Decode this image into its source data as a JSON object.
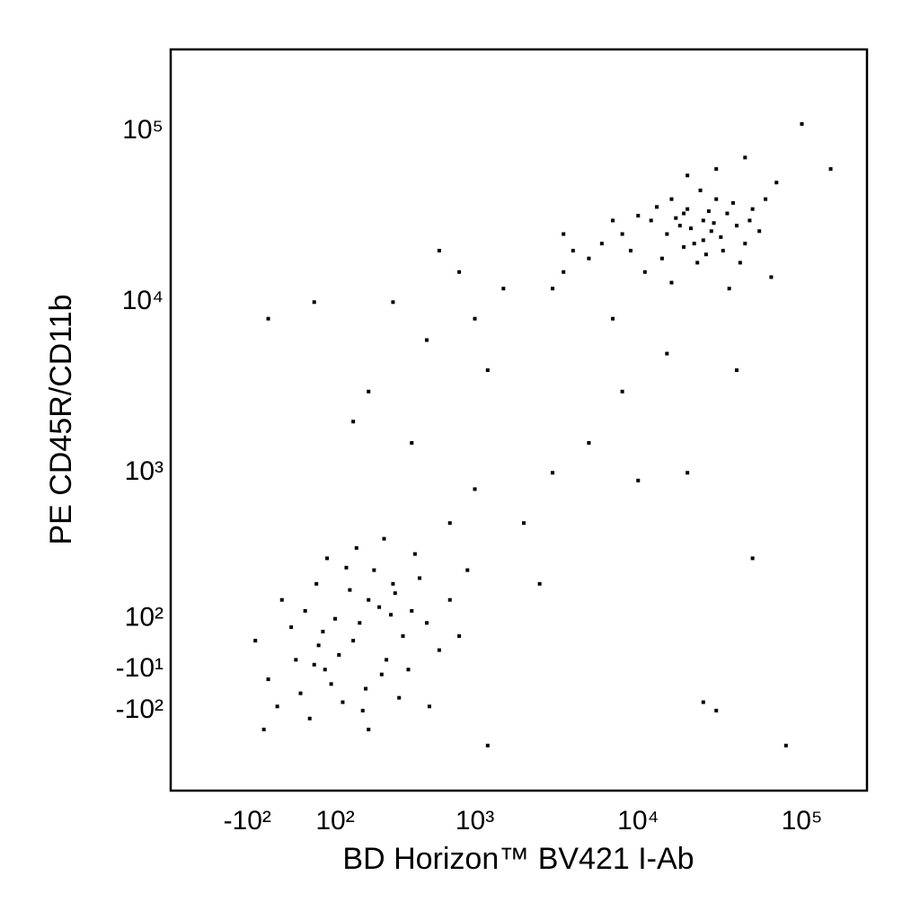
{
  "chart_data": {
    "type": "scatter",
    "x_label": "BD Horizon™ BV421 I-Ab",
    "y_label": "PE CD45R/CD11b",
    "xscale": "biexponential",
    "yscale": "biexponential",
    "xlim": [
      -400,
      250000
    ],
    "ylim": [
      -400,
      300000
    ],
    "xticks": [
      {
        "value": -100,
        "label": "-10²"
      },
      {
        "value": 100,
        "label": "10²"
      },
      {
        "value": 1000,
        "label": "10³"
      },
      {
        "value": 10000,
        "label": "10⁴"
      },
      {
        "value": 100000,
        "label": "10⁵"
      }
    ],
    "yticks": [
      {
        "value": -100,
        "label": "-10²"
      },
      {
        "value": -10,
        "label": "-10¹"
      },
      {
        "value": 100,
        "label": "10²"
      },
      {
        "value": 1000,
        "label": "10³"
      },
      {
        "value": 10000,
        "label": "10⁴"
      },
      {
        "value": 100000,
        "label": "10⁵"
      }
    ],
    "color": "#000000",
    "x": [
      12000,
      15000,
      18000,
      20000,
      22000,
      25000,
      28000,
      30000,
      9000,
      10000,
      14000,
      16000,
      19000,
      24000,
      26000,
      32000,
      35000,
      40000,
      45000,
      50000,
      8000,
      11000,
      13000,
      17000,
      21000,
      23000,
      27000,
      29000,
      33000,
      38000,
      42000,
      48000,
      55000,
      60000,
      7000,
      6000,
      5000,
      4000,
      3500,
      3000,
      20000,
      30000,
      45000,
      100000,
      70000,
      65000,
      36000,
      16000,
      25000,
      19000,
      100,
      150,
      200,
      50,
      0,
      -50,
      300,
      250,
      120,
      80,
      400,
      350,
      180,
      20,
      -20,
      60,
      220,
      500,
      600,
      140,
      90,
      30,
      270,
      330,
      450,
      700,
      170,
      110,
      40,
      -80,
      -30,
      240,
      380,
      130,
      70,
      10,
      190,
      290,
      520,
      800,
      160,
      260,
      -60,
      200,
      1200,
      900,
      420,
      75,
      55,
      310,
      300,
      500,
      200,
      1000,
      1500,
      800,
      150,
      400,
      700,
      1000,
      2000,
      3000,
      5000,
      8000,
      15000,
      20000,
      30000,
      50000,
      10000,
      2500,
      1200,
      600,
      50,
      -50,
      3500,
      7000,
      40000,
      150000,
      80000,
      25000
    ],
    "values": [
      30000,
      25000,
      28000,
      35000,
      22000,
      30000,
      26000,
      40000,
      20000,
      32000,
      18000,
      40000,
      21000,
      45000,
      19000,
      24000,
      33000,
      28000,
      22000,
      35000,
      25000,
      15000,
      36000,
      31000,
      27000,
      17000,
      34000,
      29000,
      20000,
      38000,
      17000,
      30000,
      26000,
      40000,
      30000,
      22000,
      18000,
      20000,
      15000,
      12000,
      55000,
      60000,
      70000,
      110000,
      50000,
      14000,
      12000,
      13000,
      23000,
      33000,
      100,
      50,
      150,
      0,
      80,
      -30,
      200,
      -20,
      -80,
      300,
      120,
      60,
      -100,
      -60,
      150,
      40,
      250,
      90,
      30,
      180,
      -40,
      120,
      10,
      -70,
      220,
      150,
      90,
      20,
      -120,
      50,
      -90,
      130,
      -10,
      260,
      70,
      10,
      -50,
      110,
      -90,
      60,
      350,
      400,
      -150,
      -150,
      -200,
      250,
      320,
      -10,
      200,
      170,
      10000,
      6000,
      3000,
      8000,
      12000,
      15000,
      2000,
      1500,
      500,
      800,
      500,
      1000,
      1500,
      3000,
      5000,
      1000,
      -100,
      300,
      900,
      200,
      4000,
      20000,
      10000,
      8000,
      25000,
      8000,
      4000,
      60000,
      -200,
      -80
    ]
  }
}
